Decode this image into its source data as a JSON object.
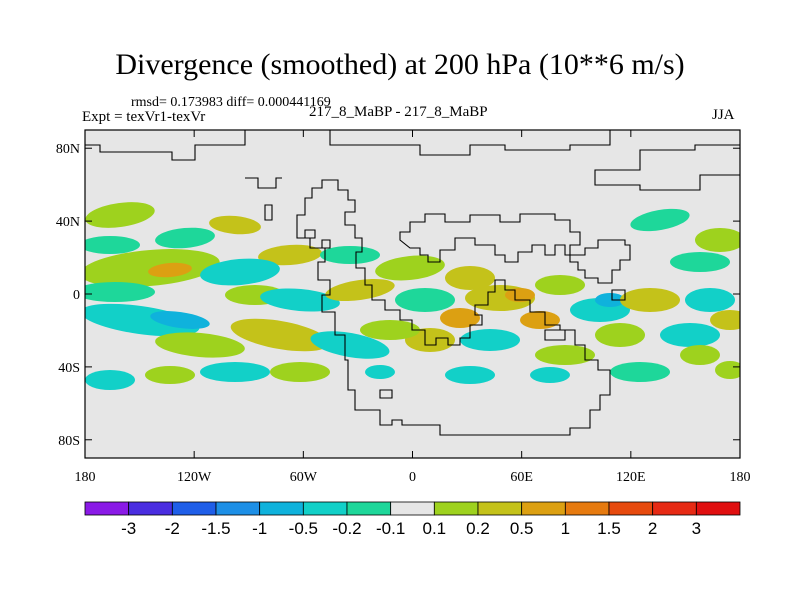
{
  "chart_data": {
    "type": "heatmap",
    "title": "Divergence (smoothed) at 200 hPa (10**6 m/s)",
    "stats_line": "rmsd= 0.173983 diff= 0.000441169",
    "expt_line": "Expt = texVr1-texVr",
    "case_label": "217_8_MaBP - 217_8_MaBP",
    "season": "JJA",
    "x_ticks": [
      "180",
      "120W",
      "60W",
      "0",
      "60E",
      "120E",
      "180"
    ],
    "x_tick_values": [
      -180,
      -120,
      -60,
      0,
      60,
      120,
      180
    ],
    "y_ticks": [
      "80N",
      "40N",
      "0",
      "40S",
      "80S"
    ],
    "y_tick_values": [
      80,
      40,
      0,
      -40,
      -80
    ],
    "xlim": [
      -180,
      180
    ],
    "ylim": [
      -90,
      90
    ],
    "colorbar": {
      "labels": [
        "-3",
        "-2",
        "-1.5",
        "-1",
        "-0.5",
        "-0.2",
        "-0.1",
        "0.1",
        "0.2",
        "0.5",
        "1",
        "1.5",
        "2",
        "3"
      ],
      "levels": [
        -3,
        -2,
        -1.5,
        -1,
        -0.5,
        -0.2,
        -0.1,
        0.1,
        0.2,
        0.5,
        1,
        1.5,
        2,
        3
      ],
      "colors": [
        "#8a1ae6",
        "#4a2de0",
        "#1f5ee8",
        "#1d8fe6",
        "#0fb2dc",
        "#12d0c8",
        "#1ed79a",
        "#e6e6e6",
        "#9ed21e",
        "#c4c21a",
        "#dca012",
        "#e67a0f",
        "#e64a0e",
        "#e62a14",
        "#e00f10"
      ]
    }
  }
}
